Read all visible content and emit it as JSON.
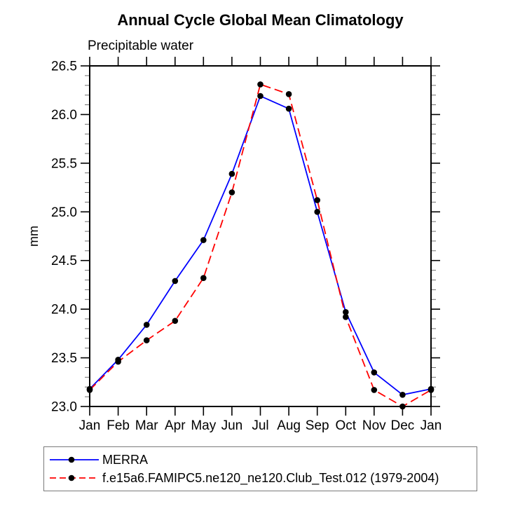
{
  "header": {
    "title": "Annual Cycle Global Mean Climatology",
    "subtitle": "Precipitable water"
  },
  "chart_data": {
    "type": "line",
    "title": "Annual Cycle Global Mean Climatology",
    "subtitle": "Precipitable water",
    "xlabel": "",
    "ylabel": "mm",
    "categories": [
      "Jan",
      "Feb",
      "Mar",
      "Apr",
      "May",
      "Jun",
      "Jul",
      "Aug",
      "Sep",
      "Oct",
      "Nov",
      "Dec",
      "Jan"
    ],
    "ylim": [
      23.0,
      26.5
    ],
    "yticks": [
      "23.0",
      "23.5",
      "24.0",
      "24.5",
      "25.0",
      "25.5",
      "26.0",
      "26.5"
    ],
    "yminor_step": 0.1,
    "grid": false,
    "legend_position": "below-left",
    "series": [
      {
        "name": "MERRA",
        "color": "#0000ff",
        "line_style": "solid",
        "marker": "circle",
        "marker_color": "#000000",
        "values": [
          23.18,
          23.48,
          23.84,
          24.29,
          24.71,
          25.39,
          26.19,
          26.06,
          25.0,
          23.97,
          23.35,
          23.12,
          23.18
        ]
      },
      {
        "name": "f.e15a6.FAMIPC5.ne120_ne120.Club_Test.012 (1979-2004)",
        "color": "#ff0000",
        "line_style": "dashed",
        "marker": "circle",
        "marker_color": "#000000",
        "values": [
          23.17,
          23.46,
          23.68,
          23.88,
          24.32,
          25.2,
          26.31,
          26.21,
          25.12,
          23.92,
          23.17,
          23.0,
          23.17
        ]
      }
    ]
  }
}
